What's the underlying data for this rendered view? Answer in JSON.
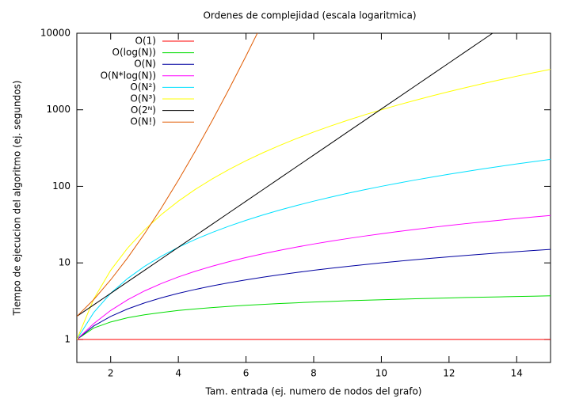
{
  "chart_data": {
    "type": "line",
    "title": "Ordenes de complejidad (escala logaritmica)",
    "x_label": "Tam. entrada (ej. numero de nodos del grafo)",
    "y_label": "Tiempo de ejecucion del algoritmo (ej. segundos)",
    "y_scale": "log",
    "legend": "top-left",
    "xlim": [
      1,
      15
    ],
    "ylim": [
      0.5,
      10000
    ],
    "xticks": [
      2,
      4,
      6,
      8,
      10,
      12,
      14
    ],
    "yticks": [
      1,
      10,
      100,
      1000,
      10000
    ],
    "x": [
      1,
      1.5,
      2,
      2.5,
      3,
      3.5,
      4,
      4.5,
      5,
      5.5,
      6,
      6.5,
      7,
      7.5,
      8,
      8.5,
      9,
      9.5,
      10,
      10.5,
      11,
      11.5,
      12,
      12.5,
      13,
      13.5,
      14,
      14.5,
      15
    ],
    "series": [
      {
        "name": "O(1)",
        "color": "#ff0000",
        "values": [
          1,
          1,
          1,
          1,
          1,
          1,
          1,
          1,
          1,
          1,
          1,
          1,
          1,
          1,
          1,
          1,
          1,
          1,
          1,
          1,
          1,
          1,
          1,
          1,
          1,
          1,
          1,
          1,
          1
        ]
      },
      {
        "name": "O(log(N))",
        "color": "#00dd00",
        "values": [
          1,
          1.41,
          1.69,
          1.92,
          2.1,
          2.25,
          2.39,
          2.5,
          2.61,
          2.7,
          2.79,
          2.87,
          2.95,
          3.01,
          3.08,
          3.14,
          3.2,
          3.25,
          3.3,
          3.35,
          3.4,
          3.44,
          3.48,
          3.53,
          3.56,
          3.6,
          3.64,
          3.67,
          3.71
        ]
      },
      {
        "name": "O(N)",
        "color": "#0000a0",
        "values": [
          1,
          1.5,
          2,
          2.5,
          3,
          3.5,
          4,
          4.5,
          5,
          5.5,
          6,
          6.5,
          7,
          7.5,
          8,
          8.5,
          9,
          9.5,
          10,
          10.5,
          11,
          11.5,
          12,
          12.5,
          13,
          13.5,
          14,
          14.5,
          15
        ]
      },
      {
        "name": "O(N*log(N))",
        "color": "#ff00ff",
        "values": [
          1,
          1.61,
          2.39,
          3.29,
          4.3,
          5.38,
          6.55,
          7.77,
          9.05,
          10.38,
          11.75,
          13.17,
          14.62,
          16.11,
          17.64,
          19.19,
          20.78,
          22.39,
          24.03,
          25.69,
          27.38,
          29.09,
          30.82,
          32.57,
          34.34,
          36.14,
          37.95,
          39.78,
          41.62
        ]
      },
      {
        "name": "O(N²)",
        "color": "#00e0ff",
        "values": [
          1,
          2.25,
          4,
          6.25,
          9,
          12.25,
          16,
          20.25,
          25,
          30.25,
          36,
          42.25,
          49,
          56.25,
          64,
          72.25,
          81,
          90.25,
          100,
          110.25,
          121,
          132.25,
          144,
          156.25,
          169,
          182.25,
          196,
          210.25,
          225
        ]
      },
      {
        "name": "O(N³)",
        "color": "#ffff00",
        "values": [
          1,
          3.375,
          8,
          15.625,
          27,
          42.875,
          64,
          91.125,
          125,
          166.375,
          216,
          274.625,
          343,
          421.875,
          512,
          614.125,
          729,
          857.375,
          1000,
          1157.625,
          1331,
          1520.875,
          1728,
          1953.125,
          2197,
          2460.375,
          2744,
          3048.625,
          3375
        ]
      },
      {
        "name": "O(2ᴺ)",
        "color": "#000000",
        "values": [
          2,
          2.83,
          4,
          5.66,
          8,
          11.31,
          16,
          22.63,
          32,
          45.25,
          64,
          90.51,
          128,
          181.02,
          256,
          362.04,
          512,
          724.08,
          1024,
          1448.15,
          2048,
          2896.31,
          4096,
          5792.62,
          8192,
          11585.24,
          16384,
          null,
          null
        ]
      },
      {
        "name": "O(N!)",
        "color": "#e05a00",
        "values": [
          2,
          3.32,
          6,
          11.63,
          24,
          52.34,
          120,
          287.9,
          720,
          1871,
          5040,
          14034,
          null,
          null,
          null,
          null,
          null,
          null,
          null,
          null,
          null,
          null,
          null,
          null,
          null,
          null,
          null,
          null,
          null
        ]
      }
    ]
  }
}
